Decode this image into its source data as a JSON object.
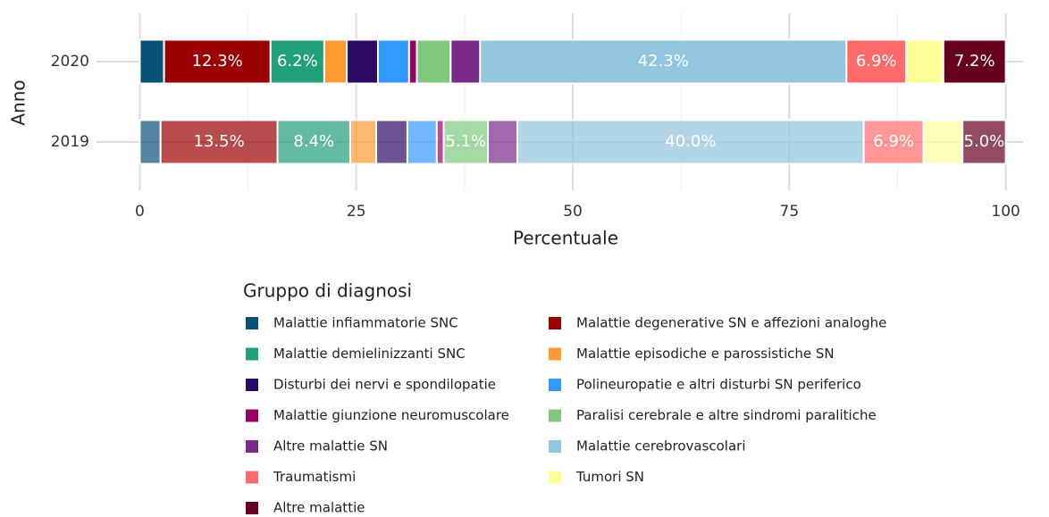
{
  "chart_data": {
    "type": "stacked-bar",
    "orientation": "horizontal",
    "x_label": "Percentuale",
    "y_label": "Anno",
    "legend_title": "Gruppo di diagnosi",
    "categories": [
      "2020",
      "2019"
    ],
    "xlim": [
      -5,
      102
    ],
    "xticks": [
      0,
      25,
      50,
      75,
      100
    ],
    "grid": true,
    "series": [
      {
        "name": "Malattie infiammatorie SNC",
        "color": "#08527a",
        "values": [
          2.8,
          2.4
        ],
        "value_labels": [
          null,
          null
        ]
      },
      {
        "name": "Malattie degenerative SN e affezioni analoghe",
        "color": "#9b0000",
        "values": [
          12.3,
          13.5
        ],
        "value_labels": [
          "12.3%",
          "13.5%"
        ]
      },
      {
        "name": "Malattie demielinizzanti SNC",
        "color": "#21a07a",
        "values": [
          6.2,
          8.4
        ],
        "value_labels": [
          "6.2%",
          "8.4%"
        ]
      },
      {
        "name": "Malattie episodiche e parossistiche SN",
        "color": "#ff9a33",
        "values": [
          2.6,
          3.0
        ],
        "value_labels": [
          null,
          null
        ]
      },
      {
        "name": "Disturbi dei nervi e spondilopatie",
        "color": "#2d0a66",
        "values": [
          3.6,
          3.6
        ],
        "value_labels": [
          null,
          null
        ]
      },
      {
        "name": "Polineuropatie e altri disturbi SN periferico",
        "color": "#3399ff",
        "values": [
          3.6,
          3.4
        ],
        "value_labels": [
          null,
          null
        ]
      },
      {
        "name": "Malattie giunzione neuromuscolare",
        "color": "#9b0066",
        "values": [
          0.9,
          0.8
        ],
        "value_labels": [
          null,
          null
        ]
      },
      {
        "name": "Paralisi cerebrale e altre sindromi paralitiche",
        "color": "#7fc97f",
        "values": [
          3.9,
          5.1
        ],
        "value_labels": [
          null,
          "5.1%"
        ]
      },
      {
        "name": "Altre malattie SN",
        "color": "#7a2a8a",
        "values": [
          3.4,
          3.4
        ],
        "value_labels": [
          null,
          null
        ]
      },
      {
        "name": "Malattie cerebrovascolari",
        "color": "#92c5de",
        "values": [
          42.3,
          40.0
        ],
        "value_labels": [
          "42.3%",
          "40.0%"
        ]
      },
      {
        "name": "Traumatismi",
        "color": "#ff6b6b",
        "values": [
          6.9,
          6.9
        ],
        "value_labels": [
          "6.9%",
          "6.9%"
        ]
      },
      {
        "name": "Tumori SN",
        "color": "#ffff99",
        "values": [
          4.3,
          4.5
        ],
        "value_labels": [
          null,
          null
        ]
      },
      {
        "name": "Altre malattie",
        "color": "#67001f",
        "values": [
          7.2,
          5.0
        ],
        "value_labels": [
          "7.2%",
          "5.0%"
        ]
      }
    ]
  }
}
